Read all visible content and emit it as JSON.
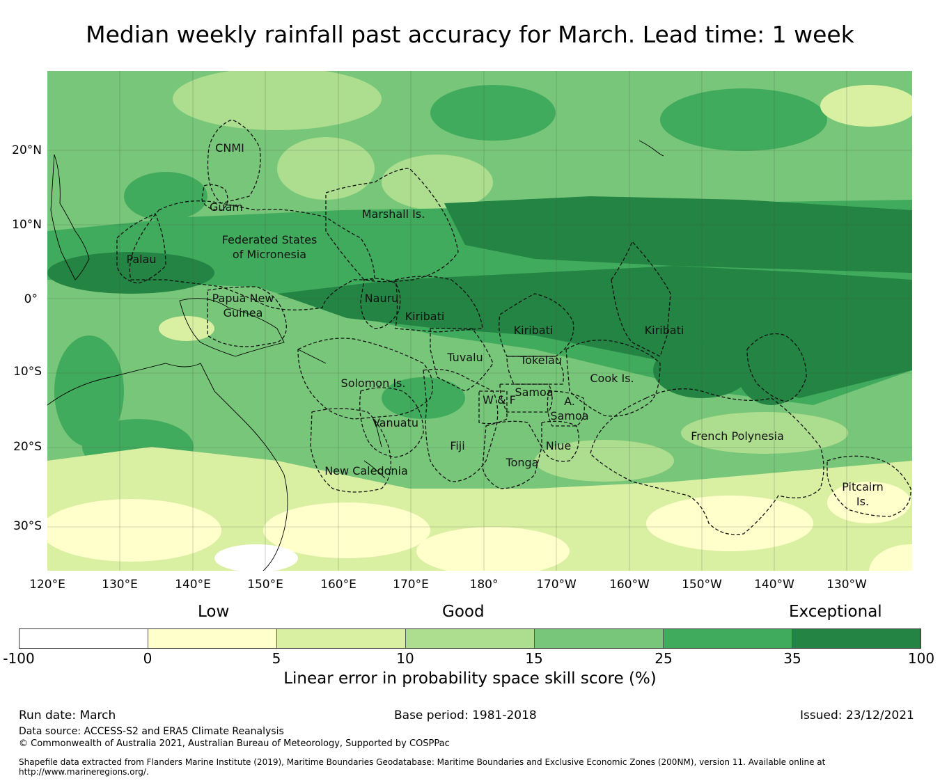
{
  "title": "Median weekly rainfall past accuracy for March. Lead time: 1 week",
  "map": {
    "lat_labels": [
      "20°N",
      "10°N",
      "0°",
      "10°S",
      "20°S",
      "30°S"
    ],
    "lon_labels": [
      "120°E",
      "130°E",
      "140°E",
      "150°E",
      "160°E",
      "170°E",
      "180°",
      "170°W",
      "160°W",
      "150°W",
      "140°W",
      "130°W"
    ],
    "regions": [
      {
        "name": "CNMI",
        "lines": [
          "CNMI"
        ]
      },
      {
        "name": "Guam",
        "lines": [
          "Guam"
        ]
      },
      {
        "name": "Marshall Is.",
        "lines": [
          "Marshall Is."
        ]
      },
      {
        "name": "Federated States of Micronesia",
        "lines": [
          "Federated States",
          "of Micronesia"
        ]
      },
      {
        "name": "Palau",
        "lines": [
          "Palau"
        ]
      },
      {
        "name": "Papua New Guinea",
        "lines": [
          "Papua New",
          "Guinea"
        ]
      },
      {
        "name": "Nauru",
        "lines": [
          "Nauru"
        ]
      },
      {
        "name": "Kiribati (Gilbert)",
        "lines": [
          "Kiribati"
        ]
      },
      {
        "name": "Kiribati (Phoenix)",
        "lines": [
          "Kiribati"
        ]
      },
      {
        "name": "Kiribati (Line)",
        "lines": [
          "Kiribati"
        ]
      },
      {
        "name": "Tuvalu",
        "lines": [
          "Tuvalu"
        ]
      },
      {
        "name": "Tokelau",
        "lines": [
          "Tokelau"
        ]
      },
      {
        "name": "Solomon Is.",
        "lines": [
          "Solomon Is."
        ]
      },
      {
        "name": "Samoa",
        "lines": [
          "Samoa"
        ]
      },
      {
        "name": "W & F",
        "lines": [
          "W & F"
        ]
      },
      {
        "name": "A. Samoa",
        "lines": [
          "A.",
          "Samoa"
        ]
      },
      {
        "name": "Cook Is.",
        "lines": [
          "Cook Is."
        ]
      },
      {
        "name": "Vanuatu",
        "lines": [
          "Vanuatu"
        ]
      },
      {
        "name": "Fiji",
        "lines": [
          "Fiji"
        ]
      },
      {
        "name": "Niue",
        "lines": [
          "Niue"
        ]
      },
      {
        "name": "Tonga",
        "lines": [
          "Tonga"
        ]
      },
      {
        "name": "New Caledonia",
        "lines": [
          "New Caledonia"
        ]
      },
      {
        "name": "French Polynesia",
        "lines": [
          "French Polynesia"
        ]
      },
      {
        "name": "Pitcairn Is.",
        "lines": [
          "Pitcairn",
          "Is."
        ]
      }
    ]
  },
  "legend": {
    "categories": {
      "low": "Low",
      "good": "Good",
      "exceptional": "Exceptional"
    },
    "ticks": [
      "-100",
      "0",
      "5",
      "10",
      "15",
      "25",
      "35",
      "100"
    ],
    "colors": [
      "#ffffff",
      "#ffffcc",
      "#d9f0a3",
      "#addd8e",
      "#78c679",
      "#41ab5d",
      "#238443"
    ],
    "title": "Linear error in probability space skill score (%)"
  },
  "footer": {
    "run_date": "Run date: March",
    "base_period": "Base period: 1981-2018",
    "issued": "Issued: 23/12/2021",
    "data_source": "Data source: ACCESS-S2 and ERA5 Climate Reanalysis",
    "copyright": "© Commonwealth of Australia 2021, Australian Bureau of Meteorology, Supported by COSPPac",
    "shapefile_1": "Shapefile data extracted from Flanders Marine Institute (2019), Maritime Boundaries Geodatabase: Maritime Boundaries and Exclusive Economic Zones (200NM), version 11. Available online at",
    "shapefile_2": "http://www.marineregions.org/."
  }
}
